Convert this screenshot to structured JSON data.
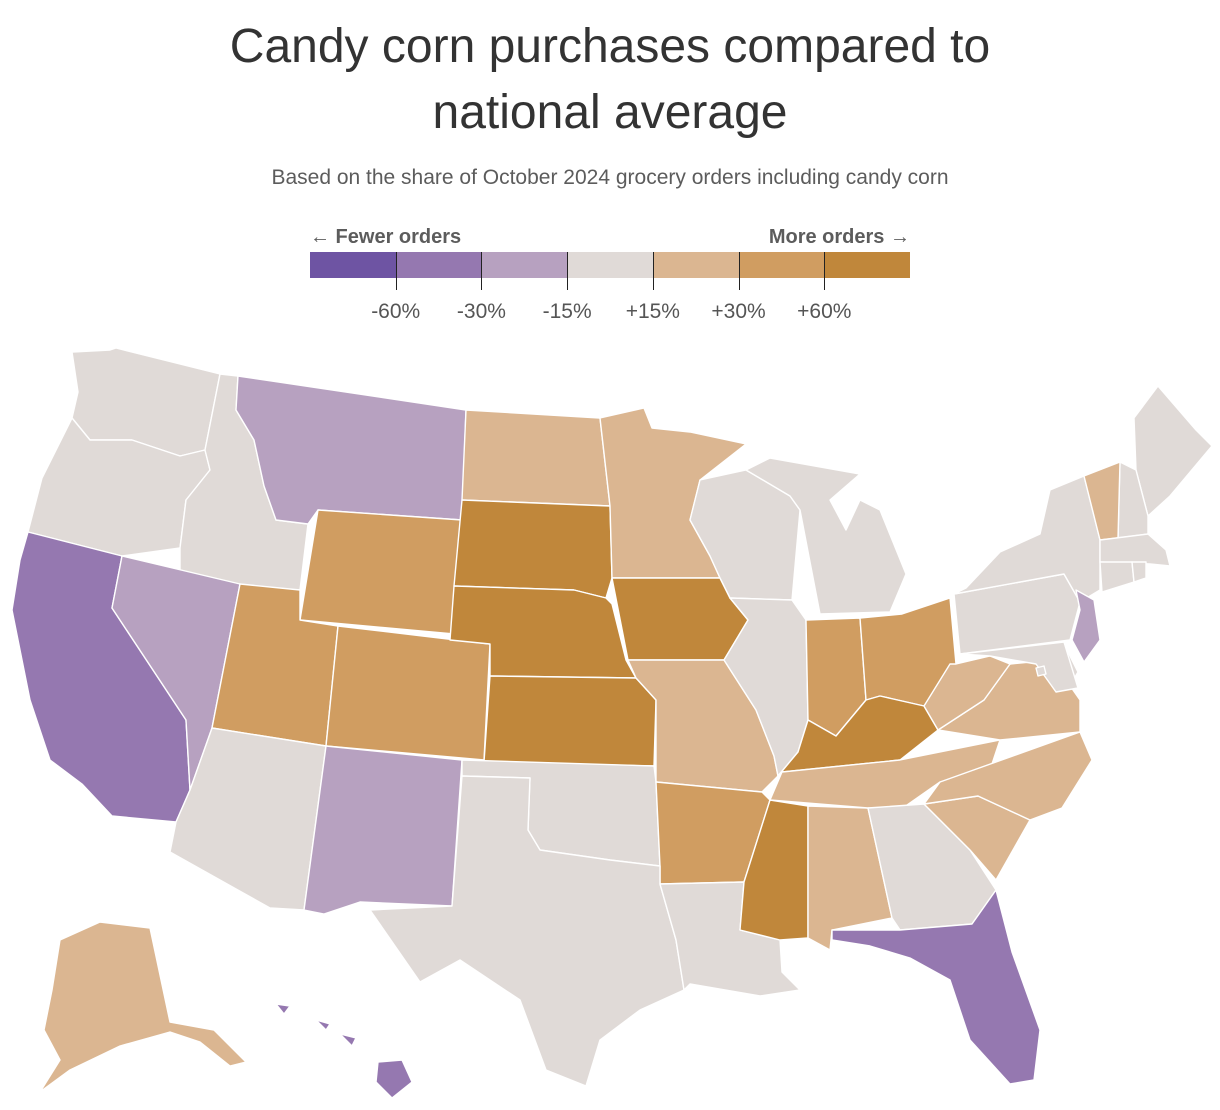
{
  "title": "Candy corn purchases compared to national average",
  "title_line1": "Candy corn purchases compared to",
  "title_line2": "national average",
  "subtitle": "Based on the share of October 2024 grocery orders including candy corn",
  "legend": {
    "left_label": "← Fewer orders",
    "right_label": "More orders →",
    "colors": [
      "#6e54a3",
      "#9578b0",
      "#b7a1c0",
      "#e0dad7",
      "#dbb691",
      "#d09d61",
      "#c0873b"
    ],
    "ticks": [
      "-60%",
      "-30%",
      "-15%",
      "+15%",
      "+30%",
      "+60%"
    ]
  },
  "chart_data": {
    "type": "choropleth",
    "scale_bins": [
      "below -60%",
      "-60% to -30%",
      "-30% to -15%",
      "-15% to +15%",
      "+15% to +30%",
      "+30% to +60%",
      "above +60%"
    ],
    "states": {
      "WA": 3,
      "OR": 3,
      "ID": 3,
      "MT": 2,
      "WY": 5,
      "ND": 4,
      "SD": 6,
      "MN": 4,
      "CA": 1,
      "NV": 2,
      "UT": 5,
      "CO": 5,
      "NE": 6,
      "IA": 6,
      "KS": 6,
      "MO": 4,
      "AZ": 3,
      "NM": 2,
      "OK": 3,
      "AR": 5,
      "TX": 3,
      "LA": 3,
      "MS": 6,
      "AL": 4,
      "WI": 3,
      "MI": 3,
      "IL": 3,
      "IN": 5,
      "OH": 5,
      "KY": 6,
      "TN": 4,
      "GA": 3,
      "FL": 1,
      "SC": 4,
      "NC": 4,
      "VA": 4,
      "WV": 4,
      "PA": 3,
      "NY": 3,
      "NJ": 2,
      "DE": 3,
      "MD": 3,
      "DC": 3,
      "ME": 3,
      "NH": 3,
      "VT": 4,
      "MA": 3,
      "CT": 3,
      "RI": 3,
      "AK": 4,
      "HI": 1
    }
  }
}
